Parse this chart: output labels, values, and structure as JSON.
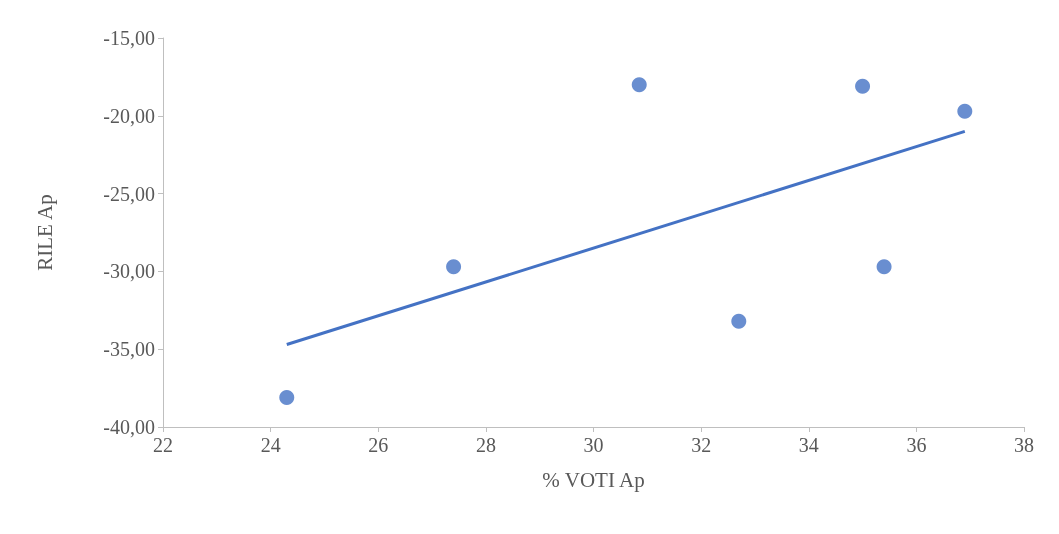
{
  "chart_data": {
    "type": "scatter",
    "xlabel": "% VOTI Ap",
    "ylabel": "RILE Ap",
    "marker": "circle",
    "grid": false,
    "xlim": [
      22,
      38
    ],
    "xticks": [
      22,
      24,
      26,
      28,
      30,
      32,
      34,
      36,
      38
    ],
    "ylim": [
      -40,
      -15
    ],
    "yticks": [
      {
        "value": -40,
        "label": "-40,00"
      },
      {
        "value": -35,
        "label": "-35,00"
      },
      {
        "value": -30,
        "label": "-30,00"
      },
      {
        "value": -25,
        "label": "-25,00"
      },
      {
        "value": -20,
        "label": "-20,00"
      },
      {
        "value": -15,
        "label": "-15,00"
      }
    ],
    "series": [
      {
        "color": "#4472c4",
        "x": [
          24.3,
          27.4,
          30.85,
          32.7,
          35.0,
          35.4,
          36.9
        ],
        "values": [
          -38.1,
          -29.7,
          -18.0,
          -33.2,
          -18.1,
          -29.7,
          -19.7
        ]
      },
      {
        "type": "line",
        "marker": "none",
        "color": "#4472c4",
        "x": [
          24.3,
          36.9
        ],
        "values": [
          -34.7,
          -21.0
        ]
      }
    ]
  }
}
